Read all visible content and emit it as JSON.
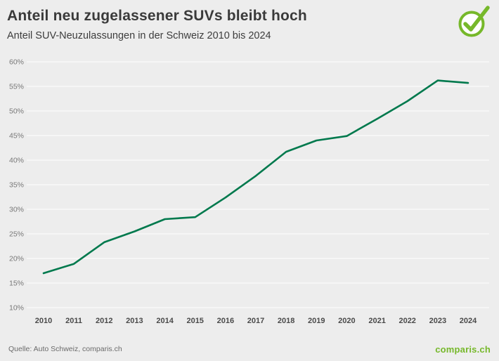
{
  "header": {
    "title": "Anteil neu zugelassener SUVs bleibt hoch",
    "subtitle": "Anteil SUV-Neuzulassungen in der Schweiz 2010 bis 2024"
  },
  "footer": {
    "source": "Quelle: Auto Schweiz, comparis.ch",
    "brand": "comparis.ch"
  },
  "colors": {
    "line": "#00794d",
    "accent_green": "#76b82a",
    "background": "#ededed",
    "grid": "#ffffff",
    "title_text": "#3a3a3a",
    "axis_text": "#4a4a4a"
  },
  "chart_data": {
    "type": "line",
    "title": "Anteil neu zugelassener SUVs bleibt hoch",
    "subtitle": "Anteil SUV-Neuzulassungen in der Schweiz 2010 bis 2024",
    "x": [
      "2010",
      "2011",
      "2012",
      "2013",
      "2014",
      "2015",
      "2016",
      "2017",
      "2018",
      "2019",
      "2020",
      "2021",
      "2022",
      "2023",
      "2024"
    ],
    "values": [
      17.0,
      18.9,
      23.3,
      25.5,
      28.0,
      28.4,
      32.4,
      36.8,
      41.7,
      44.0,
      44.9,
      48.4,
      52.0,
      56.2,
      55.7
    ],
    "unit": "%",
    "xlabel": "",
    "ylabel": "",
    "ylim": [
      10,
      60
    ],
    "ytick_step": 5,
    "ytick_suffix": "%",
    "grid": true,
    "legend": false
  }
}
